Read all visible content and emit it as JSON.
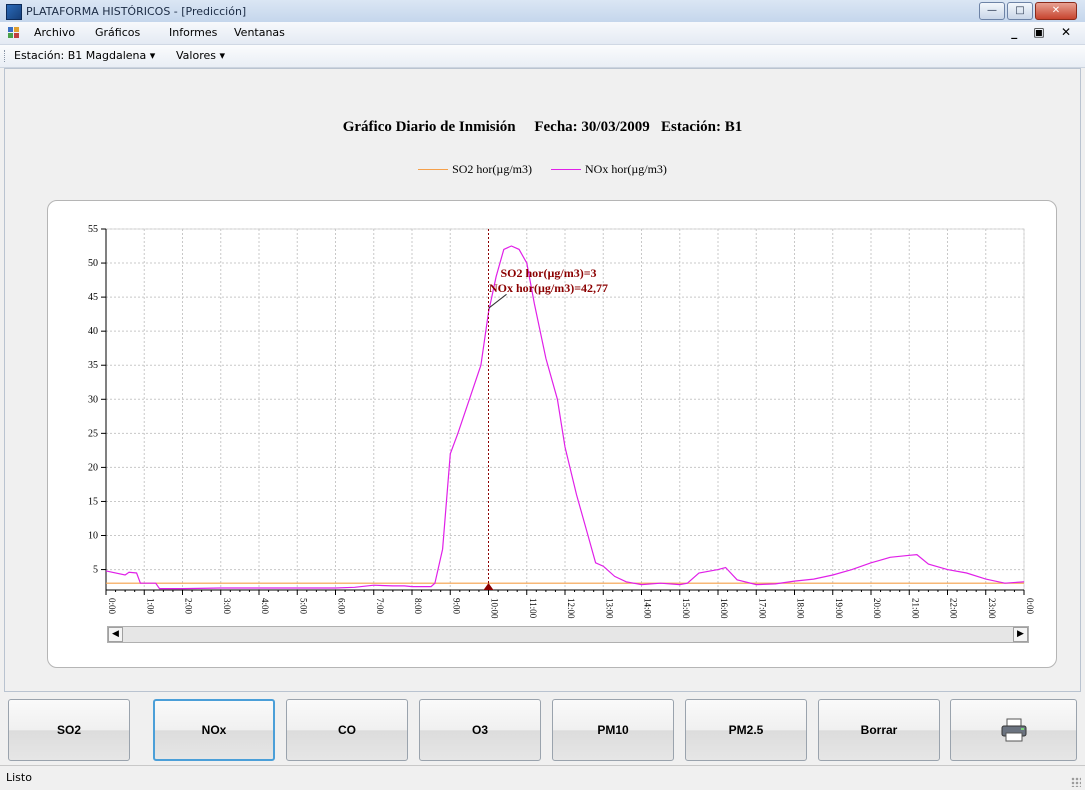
{
  "window": {
    "title": "PLATAFORMA HISTÓRICOS - [Predicción]"
  },
  "menu": {
    "items": [
      "Archivo",
      "Gráficos",
      "Informes",
      "Ventanas"
    ]
  },
  "toolbar": {
    "station_label": "Estación: B1 Magdalena",
    "values_label": "Valores"
  },
  "chart_data": {
    "type": "line",
    "title": "Gráfico Diario de Inmisión     Fecha: 30/03/2009   Estación: B1",
    "legend_position": "top-center",
    "x_ticks": [
      "0:00",
      "1:00",
      "2:00",
      "3:00",
      "4:00",
      "5:00",
      "6:00",
      "7:00",
      "8:00",
      "9:00",
      "10:00",
      "11:00",
      "12:00",
      "13:00",
      "14:00",
      "15:00",
      "16:00",
      "17:00",
      "18:00",
      "19:00",
      "20:00",
      "21:00",
      "22:00",
      "23:00",
      "0:00"
    ],
    "x_range_hours": [
      0,
      24
    ],
    "ylim": [
      2,
      55
    ],
    "y_ticks": [
      5,
      10,
      15,
      20,
      25,
      30,
      35,
      40,
      45,
      50,
      55
    ],
    "grid": true,
    "cursor_x_hours": 10,
    "annotation": [
      "SO2 hor(µg/m3)=3",
      "NOx hor(µg/m3)=42,77"
    ],
    "series": [
      {
        "name": "SO2 hor(µg/m3)",
        "color": "#f5a04a",
        "x": [
          0,
          24
        ],
        "y": [
          3,
          3
        ]
      },
      {
        "name": "NOx hor(µg/m3)",
        "color": "#e020e8",
        "x": [
          0,
          0.5,
          0.6,
          0.8,
          0.9,
          1.3,
          1.4,
          2,
          3,
          4,
          5,
          6,
          6.5,
          7,
          7.5,
          7.8,
          8,
          8.5,
          8.6,
          8.8,
          9,
          9.2,
          9.5,
          9.8,
          10,
          10.2,
          10.4,
          10.6,
          10.8,
          11,
          11.2,
          11.5,
          11.8,
          12,
          12.3,
          12.6,
          12.8,
          13,
          13.3,
          13.6,
          14,
          14.5,
          15,
          15.2,
          15.5,
          16,
          16.2,
          16.5,
          17,
          17.5,
          18,
          18.5,
          19,
          19.5,
          20,
          20.2,
          20.5,
          21,
          21.2,
          21.5,
          22,
          22.5,
          23,
          23.5,
          24
        ],
        "y": [
          4.8,
          4.2,
          4.6,
          4.5,
          3.0,
          3.0,
          2.2,
          2.2,
          2.3,
          2.3,
          2.3,
          2.3,
          2.4,
          2.7,
          2.6,
          2.6,
          2.5,
          2.5,
          3.0,
          8,
          22,
          25,
          30,
          35,
          42.77,
          48,
          52,
          52.5,
          52,
          50,
          44,
          36,
          30,
          23,
          16,
          10,
          6,
          5.5,
          4,
          3.2,
          2.8,
          3,
          2.8,
          3,
          4.5,
          5,
          5.3,
          3.5,
          2.8,
          2.9,
          3.3,
          3.6,
          4.2,
          5,
          6,
          6.3,
          6.8,
          7.1,
          7.2,
          5.8,
          5,
          4.5,
          3.6,
          3,
          3.2
        ]
      }
    ]
  },
  "buttons": [
    "SO2",
    "NOx",
    "CO",
    "O3",
    "PM10",
    "PM2.5",
    "Borrar"
  ],
  "status": {
    "text": "Listo"
  }
}
